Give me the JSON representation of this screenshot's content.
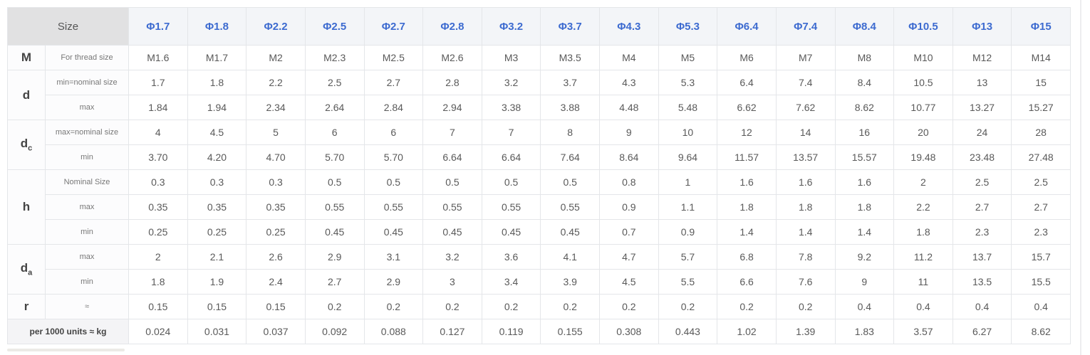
{
  "chart_data": {
    "type": "table",
    "size_header": "Size",
    "columns": [
      "Φ1.7",
      "Φ1.8",
      "Φ2.2",
      "Φ2.5",
      "Φ2.7",
      "Φ2.8",
      "Φ3.2",
      "Φ3.7",
      "Φ4.3",
      "Φ5.3",
      "Φ6.4",
      "Φ7.4",
      "Φ8.4",
      "Φ10.5",
      "Φ13",
      "Φ15"
    ],
    "row_groups": [
      {
        "label_base": "M",
        "label_sub": "",
        "rows": [
          {
            "label": "For thread size",
            "values": [
              "M1.6",
              "M1.7",
              "M2",
              "M2.3",
              "M2.5",
              "M2.6",
              "M3",
              "M3.5",
              "M4",
              "M5",
              "M6",
              "M7",
              "M8",
              "M10",
              "M12",
              "M14"
            ]
          }
        ]
      },
      {
        "label_base": "d",
        "label_sub": "",
        "rows": [
          {
            "label": "min=nominal size",
            "values": [
              "1.7",
              "1.8",
              "2.2",
              "2.5",
              "2.7",
              "2.8",
              "3.2",
              "3.7",
              "4.3",
              "5.3",
              "6.4",
              "7.4",
              "8.4",
              "10.5",
              "13",
              "15"
            ]
          },
          {
            "label": "max",
            "values": [
              "1.84",
              "1.94",
              "2.34",
              "2.64",
              "2.84",
              "2.94",
              "3.38",
              "3.88",
              "4.48",
              "5.48",
              "6.62",
              "7.62",
              "8.62",
              "10.77",
              "13.27",
              "15.27"
            ]
          }
        ]
      },
      {
        "label_base": "d",
        "label_sub": "c",
        "rows": [
          {
            "label": "max=nominal size",
            "values": [
              "4",
              "4.5",
              "5",
              "6",
              "6",
              "7",
              "7",
              "8",
              "9",
              "10",
              "12",
              "14",
              "16",
              "20",
              "24",
              "28"
            ]
          },
          {
            "label": "min",
            "values": [
              "3.70",
              "4.20",
              "4.70",
              "5.70",
              "5.70",
              "6.64",
              "6.64",
              "7.64",
              "8.64",
              "9.64",
              "11.57",
              "13.57",
              "15.57",
              "19.48",
              "23.48",
              "27.48"
            ]
          }
        ]
      },
      {
        "label_base": "h",
        "label_sub": "",
        "rows": [
          {
            "label": "Nominal Size",
            "values": [
              "0.3",
              "0.3",
              "0.3",
              "0.5",
              "0.5",
              "0.5",
              "0.5",
              "0.5",
              "0.8",
              "1",
              "1.6",
              "1.6",
              "1.6",
              "2",
              "2.5",
              "2.5"
            ]
          },
          {
            "label": "max",
            "values": [
              "0.35",
              "0.35",
              "0.35",
              "0.55",
              "0.55",
              "0.55",
              "0.55",
              "0.55",
              "0.9",
              "1.1",
              "1.8",
              "1.8",
              "1.8",
              "2.2",
              "2.7",
              "2.7"
            ]
          },
          {
            "label": "min",
            "values": [
              "0.25",
              "0.25",
              "0.25",
              "0.45",
              "0.45",
              "0.45",
              "0.45",
              "0.45",
              "0.7",
              "0.9",
              "1.4",
              "1.4",
              "1.4",
              "1.8",
              "2.3",
              "2.3"
            ]
          }
        ]
      },
      {
        "label_base": "d",
        "label_sub": "a",
        "rows": [
          {
            "label": "max",
            "values": [
              "2",
              "2.1",
              "2.6",
              "2.9",
              "3.1",
              "3.2",
              "3.6",
              "4.1",
              "4.7",
              "5.7",
              "6.8",
              "7.8",
              "9.2",
              "11.2",
              "13.7",
              "15.7"
            ]
          },
          {
            "label": "min",
            "values": [
              "1.8",
              "1.9",
              "2.4",
              "2.7",
              "2.9",
              "3",
              "3.4",
              "3.9",
              "4.5",
              "5.5",
              "6.6",
              "7.6",
              "9",
              "11",
              "13.5",
              "15.5"
            ]
          }
        ]
      },
      {
        "label_base": "r",
        "label_sub": "",
        "rows": [
          {
            "label": "≈",
            "values": [
              "0.15",
              "0.15",
              "0.15",
              "0.2",
              "0.2",
              "0.2",
              "0.2",
              "0.2",
              "0.2",
              "0.2",
              "0.2",
              "0.2",
              "0.4",
              "0.4",
              "0.4",
              "0.4"
            ]
          }
        ]
      }
    ],
    "footer_row": {
      "label": "per 1000 units ≈ kg",
      "values": [
        "0.024",
        "0.031",
        "0.037",
        "0.092",
        "0.088",
        "0.127",
        "0.119",
        "0.155",
        "0.308",
        "0.443",
        "1.02",
        "1.39",
        "1.83",
        "3.57",
        "6.27",
        "8.62"
      ]
    },
    "colors": {
      "header_text_blue": "#3d6bd0",
      "header_bg": "#f3f5f8",
      "size_cell_bg": "#e1e1e2",
      "value_text": "#595959",
      "border": "#e4e6e9"
    }
  }
}
